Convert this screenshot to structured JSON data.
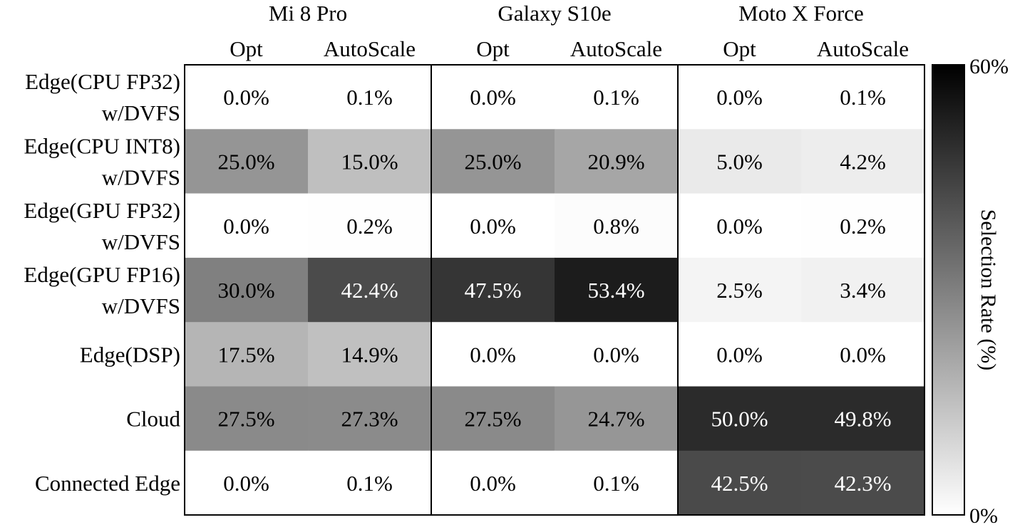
{
  "chart_data": {
    "type": "heatmap",
    "devices": [
      "Mi 8 Pro",
      "Galaxy S10e",
      "Moto X Force"
    ],
    "methods": [
      "Opt",
      "AutoScale"
    ],
    "rows": [
      [
        "Edge(CPU FP32)",
        "w/DVFS"
      ],
      [
        "Edge(CPU INT8)",
        "w/DVFS"
      ],
      [
        "Edge(GPU FP32)",
        "w/DVFS"
      ],
      [
        "Edge(GPU FP16)",
        "w/DVFS"
      ],
      [
        "Edge(DSP)"
      ],
      [
        "Cloud"
      ],
      [
        "Connected Edge"
      ]
    ],
    "values": [
      [
        0.0,
        0.1,
        0.0,
        0.1,
        0.0,
        0.1
      ],
      [
        25.0,
        15.0,
        25.0,
        20.9,
        5.0,
        4.2
      ],
      [
        0.0,
        0.2,
        0.0,
        0.8,
        0.0,
        0.2
      ],
      [
        30.0,
        42.4,
        47.5,
        53.4,
        2.5,
        3.4
      ],
      [
        17.5,
        14.9,
        0.0,
        0.0,
        0.0,
        0.0
      ],
      [
        27.5,
        27.3,
        27.5,
        24.7,
        50.0,
        49.8
      ],
      [
        0.0,
        0.1,
        0.0,
        0.1,
        42.5,
        42.3
      ]
    ],
    "value_suffix": "%",
    "colorbar": {
      "label": "Selection Rate (%)",
      "min": 0,
      "max": 60,
      "min_label": "0%",
      "max_label": "60%",
      "low_color": "#ffffff",
      "high_color": "#000000"
    }
  }
}
